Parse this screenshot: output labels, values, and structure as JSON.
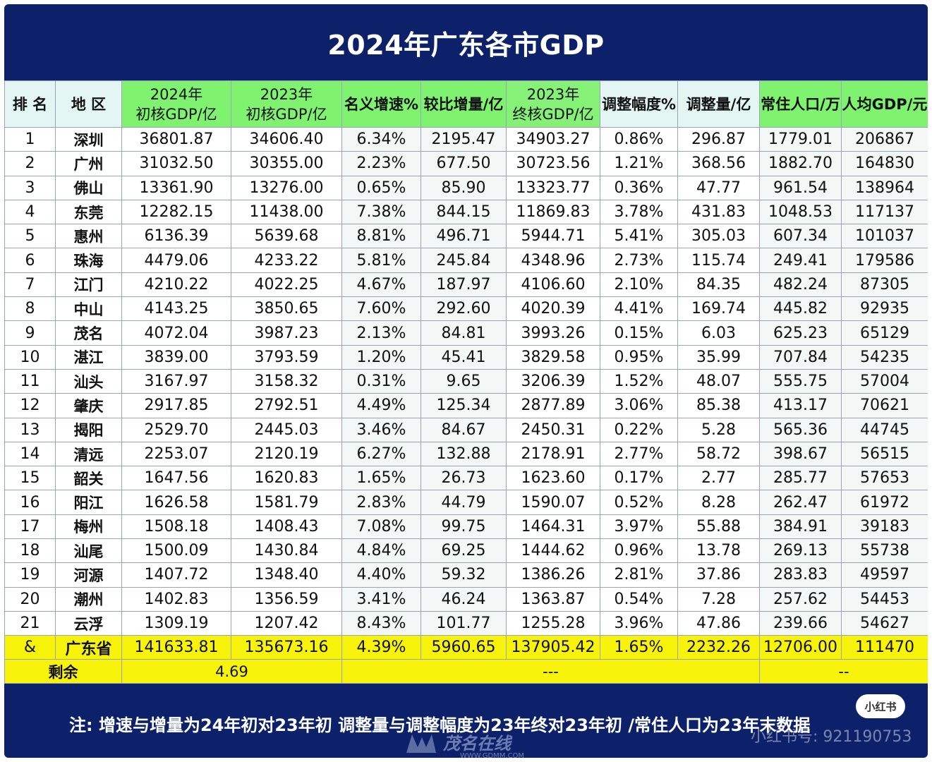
{
  "title": "2024年广东各市GDP",
  "headers": {
    "rank": "排 名",
    "region": "地 区",
    "gdp2024_l1": "2024年",
    "gdp2024_l2": "初核GDP/亿",
    "gdp2023_l1": "2023年",
    "gdp2023_l2": "初核GDP/亿",
    "growth": "名义增速%",
    "increase": "较比增量/亿",
    "final2023_l1": "2023年",
    "final2023_l2": "终核GDP/亿",
    "adj_pct": "调整幅度%",
    "adj_amt": "调整量/亿",
    "population": "常住人口/万",
    "per_capita": "人均GDP/元"
  },
  "rows": [
    {
      "rank": "1",
      "city": "深圳",
      "gdp2024": "36801.87",
      "gdp2023": "34606.40",
      "growth": "6.34%",
      "increase": "2195.47",
      "final2023": "34903.27",
      "adj_pct": "0.86%",
      "adj_amt": "296.87",
      "population": "1779.01",
      "per_capita": "206867"
    },
    {
      "rank": "2",
      "city": "广州",
      "gdp2024": "31032.50",
      "gdp2023": "30355.00",
      "growth": "2.23%",
      "increase": "677.50",
      "final2023": "30723.56",
      "adj_pct": "1.21%",
      "adj_amt": "368.56",
      "population": "1882.70",
      "per_capita": "164830"
    },
    {
      "rank": "3",
      "city": "佛山",
      "gdp2024": "13361.90",
      "gdp2023": "13276.00",
      "growth": "0.65%",
      "increase": "85.90",
      "final2023": "13323.77",
      "adj_pct": "0.36%",
      "adj_amt": "47.77",
      "population": "961.54",
      "per_capita": "138964"
    },
    {
      "rank": "4",
      "city": "东莞",
      "gdp2024": "12282.15",
      "gdp2023": "11438.00",
      "growth": "7.38%",
      "increase": "844.15",
      "final2023": "11869.83",
      "adj_pct": "3.78%",
      "adj_amt": "431.83",
      "population": "1048.53",
      "per_capita": "117137"
    },
    {
      "rank": "5",
      "city": "惠州",
      "gdp2024": "6136.39",
      "gdp2023": "5639.68",
      "growth": "8.81%",
      "increase": "496.71",
      "final2023": "5944.71",
      "adj_pct": "5.41%",
      "adj_amt": "305.03",
      "population": "607.34",
      "per_capita": "101037"
    },
    {
      "rank": "6",
      "city": "珠海",
      "gdp2024": "4479.06",
      "gdp2023": "4233.22",
      "growth": "5.81%",
      "increase": "245.84",
      "final2023": "4348.96",
      "adj_pct": "2.73%",
      "adj_amt": "115.74",
      "population": "249.41",
      "per_capita": "179586"
    },
    {
      "rank": "7",
      "city": "江门",
      "gdp2024": "4210.22",
      "gdp2023": "4022.25",
      "growth": "4.67%",
      "increase": "187.97",
      "final2023": "4106.60",
      "adj_pct": "2.10%",
      "adj_amt": "84.35",
      "population": "482.24",
      "per_capita": "87305"
    },
    {
      "rank": "8",
      "city": "中山",
      "gdp2024": "4143.25",
      "gdp2023": "3850.65",
      "growth": "7.60%",
      "increase": "292.60",
      "final2023": "4020.39",
      "adj_pct": "4.41%",
      "adj_amt": "169.74",
      "population": "445.82",
      "per_capita": "92935"
    },
    {
      "rank": "9",
      "city": "茂名",
      "gdp2024": "4072.04",
      "gdp2023": "3987.23",
      "growth": "2.13%",
      "increase": "84.81",
      "final2023": "3993.26",
      "adj_pct": "0.15%",
      "adj_amt": "6.03",
      "population": "625.23",
      "per_capita": "65129"
    },
    {
      "rank": "10",
      "city": "湛江",
      "gdp2024": "3839.00",
      "gdp2023": "3793.59",
      "growth": "1.20%",
      "increase": "45.41",
      "final2023": "3829.58",
      "adj_pct": "0.95%",
      "adj_amt": "35.99",
      "population": "707.84",
      "per_capita": "54235"
    },
    {
      "rank": "11",
      "city": "汕头",
      "gdp2024": "3167.97",
      "gdp2023": "3158.32",
      "growth": "0.31%",
      "increase": "9.65",
      "final2023": "3206.39",
      "adj_pct": "1.52%",
      "adj_amt": "48.07",
      "population": "555.75",
      "per_capita": "57004"
    },
    {
      "rank": "12",
      "city": "肇庆",
      "gdp2024": "2917.85",
      "gdp2023": "2792.51",
      "growth": "4.49%",
      "increase": "125.34",
      "final2023": "2877.89",
      "adj_pct": "3.06%",
      "adj_amt": "85.38",
      "population": "413.17",
      "per_capita": "70621"
    },
    {
      "rank": "13",
      "city": "揭阳",
      "gdp2024": "2529.70",
      "gdp2023": "2445.03",
      "growth": "3.46%",
      "increase": "84.67",
      "final2023": "2450.31",
      "adj_pct": "0.22%",
      "adj_amt": "5.28",
      "population": "565.36",
      "per_capita": "44745"
    },
    {
      "rank": "14",
      "city": "清远",
      "gdp2024": "2253.07",
      "gdp2023": "2120.19",
      "growth": "6.27%",
      "increase": "132.88",
      "final2023": "2178.91",
      "adj_pct": "2.77%",
      "adj_amt": "58.72",
      "population": "398.67",
      "per_capita": "56515"
    },
    {
      "rank": "15",
      "city": "韶关",
      "gdp2024": "1647.56",
      "gdp2023": "1620.83",
      "growth": "1.65%",
      "increase": "26.73",
      "final2023": "1623.60",
      "adj_pct": "0.17%",
      "adj_amt": "2.77",
      "population": "285.77",
      "per_capita": "57653"
    },
    {
      "rank": "16",
      "city": "阳江",
      "gdp2024": "1626.58",
      "gdp2023": "1581.79",
      "growth": "2.83%",
      "increase": "44.79",
      "final2023": "1590.07",
      "adj_pct": "0.52%",
      "adj_amt": "8.28",
      "population": "262.47",
      "per_capita": "61972"
    },
    {
      "rank": "17",
      "city": "梅州",
      "gdp2024": "1508.18",
      "gdp2023": "1408.43",
      "growth": "7.08%",
      "increase": "99.75",
      "final2023": "1464.31",
      "adj_pct": "3.97%",
      "adj_amt": "55.88",
      "population": "384.91",
      "per_capita": "39183"
    },
    {
      "rank": "18",
      "city": "汕尾",
      "gdp2024": "1500.09",
      "gdp2023": "1430.84",
      "growth": "4.84%",
      "increase": "69.25",
      "final2023": "1444.62",
      "adj_pct": "0.96%",
      "adj_amt": "13.78",
      "population": "269.13",
      "per_capita": "55738"
    },
    {
      "rank": "19",
      "city": "河源",
      "gdp2024": "1407.72",
      "gdp2023": "1348.40",
      "growth": "4.40%",
      "increase": "59.32",
      "final2023": "1386.26",
      "adj_pct": "2.81%",
      "adj_amt": "37.86",
      "population": "283.83",
      "per_capita": "49597"
    },
    {
      "rank": "20",
      "city": "潮州",
      "gdp2024": "1402.83",
      "gdp2023": "1356.59",
      "growth": "3.41%",
      "increase": "46.24",
      "final2023": "1363.87",
      "adj_pct": "0.54%",
      "adj_amt": "7.28",
      "population": "257.62",
      "per_capita": "54453"
    },
    {
      "rank": "21",
      "city": "云浮",
      "gdp2024": "1309.19",
      "gdp2023": "1207.42",
      "growth": "8.43%",
      "increase": "101.77",
      "final2023": "1255.28",
      "adj_pct": "3.96%",
      "adj_amt": "47.86",
      "population": "239.66",
      "per_capita": "54627"
    }
  ],
  "total": {
    "rank": "&",
    "city": "广东省",
    "gdp2024": "141633.81",
    "gdp2023": "135673.16",
    "growth": "4.39%",
    "increase": "5960.65",
    "final2023": "137905.42",
    "adj_pct": "1.65%",
    "adj_amt": "2232.26",
    "population": "12706.00",
    "per_capita": "111470"
  },
  "remainder": {
    "label": "剩余",
    "value": "4.69",
    "dash_mid": "---",
    "dash_right": "--"
  },
  "footnote": "注: 增速与增量为24年初对23年初 调整量与调整幅度为23年终对23年初 /常住人口为23年末数据",
  "watermark": {
    "badge": "小红书",
    "id": "小红书号: 921190753",
    "logo_text": "茂名在线",
    "logo_url": "WWW.GDMM.COM"
  },
  "colors": {
    "frame": "#0c2169",
    "header_green": "#7ff26f",
    "header_mint": "#e4f6f4",
    "total_yellow": "#f7f30a"
  }
}
